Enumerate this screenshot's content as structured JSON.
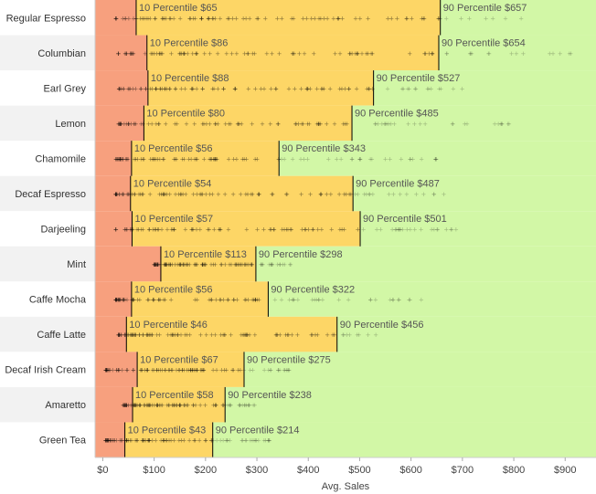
{
  "colors": {
    "low_band": "#f7a07e",
    "mid_band": "#fdd666",
    "high_band": "#d2f7a6",
    "row_alt": "#f2f2f2",
    "ref_line": "#000000",
    "marks": "#000000"
  },
  "chart_data": {
    "type": "scatter",
    "title": "",
    "xlabel": "Avg. Sales",
    "ylabel": "",
    "xlim": [
      -15,
      960
    ],
    "x_ticks": [
      "$0",
      "$100",
      "$200",
      "$300",
      "$400",
      "$500",
      "$600",
      "$700",
      "$800",
      "$900"
    ],
    "x_tick_values": [
      0,
      100,
      200,
      300,
      400,
      500,
      600,
      700,
      800,
      900
    ],
    "reference_label_prefix_low": "10 Percentile",
    "reference_label_prefix_high": "90 Percentile",
    "categories": [
      {
        "name": "Regular Espresso",
        "p10": 65,
        "p10_label": "$65",
        "p90": 657,
        "p90_label": "$657",
        "min": 25,
        "max": 820
      },
      {
        "name": "Columbian",
        "p10": 86,
        "p10_label": "$86",
        "p90": 654,
        "p90_label": "$654",
        "min": 30,
        "max": 915
      },
      {
        "name": "Earl Grey",
        "p10": 88,
        "p10_label": "$88",
        "p90": 527,
        "p90_label": "$527",
        "min": 30,
        "max": 710
      },
      {
        "name": "Lemon",
        "p10": 80,
        "p10_label": "$80",
        "p90": 485,
        "p90_label": "$485",
        "min": 30,
        "max": 800
      },
      {
        "name": "Chamomile",
        "p10": 56,
        "p10_label": "$56",
        "p90": 343,
        "p90_label": "$343",
        "min": 25,
        "max": 690
      },
      {
        "name": "Decaf Espresso",
        "p10": 54,
        "p10_label": "$54",
        "p90": 487,
        "p90_label": "$487",
        "min": 25,
        "max": 690
      },
      {
        "name": "Darjeeling",
        "p10": 57,
        "p10_label": "$57",
        "p90": 501,
        "p90_label": "$501",
        "min": 25,
        "max": 690
      },
      {
        "name": "Mint",
        "p10": 113,
        "p10_label": "$113",
        "p90": 298,
        "p90_label": "$298",
        "min": 100,
        "max": 380
      },
      {
        "name": "Caffe Mocha",
        "p10": 56,
        "p10_label": "$56",
        "p90": 322,
        "p90_label": "$322",
        "min": 25,
        "max": 690
      },
      {
        "name": "Caffe Latte",
        "p10": 46,
        "p10_label": "$46",
        "p90": 456,
        "p90_label": "$456",
        "min": 30,
        "max": 535
      },
      {
        "name": "Decaf Irish Cream",
        "p10": 67,
        "p10_label": "$67",
        "p90": 275,
        "p90_label": "$275",
        "min": 5,
        "max": 380
      },
      {
        "name": "Amaretto",
        "p10": 58,
        "p10_label": "$58",
        "p90": 238,
        "p90_label": "$238",
        "min": 40,
        "max": 310
      },
      {
        "name": "Green Tea",
        "p10": 43,
        "p10_label": "$43",
        "p90": 214,
        "p90_label": "$214",
        "min": 5,
        "max": 345
      }
    ]
  }
}
